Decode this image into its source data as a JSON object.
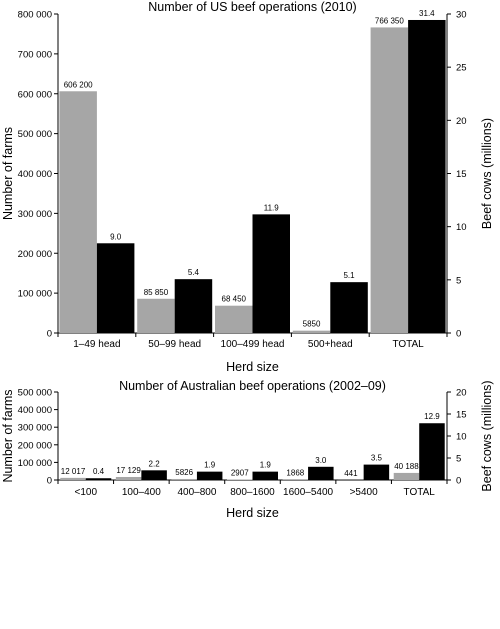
{
  "colors": {
    "farms": "#a6a6a6",
    "cows": "#000000",
    "axis": "#000000"
  },
  "chart_data": [
    {
      "type": "bar",
      "title": "Number of US beef operations (2010)",
      "xlabel": "Herd size",
      "ylabel": "Number of farms",
      "y2label": "Beef cows (millions)",
      "ylim": [
        0,
        800000
      ],
      "y2lim": [
        0,
        32
      ],
      "yticks": [
        "0",
        "100 000",
        "200 000",
        "300 000",
        "400 000",
        "500 000",
        "600 000",
        "700 000",
        "800 000"
      ],
      "y2ticks": [
        "0",
        "5",
        "10",
        "15",
        "20",
        "25",
        "30"
      ],
      "categories": [
        "1–49 head",
        "50–99 head",
        "100–499 head",
        "500+head",
        "TOTAL"
      ],
      "series": [
        {
          "axis": "left",
          "color": "#a6a6a6",
          "values": [
            606200,
            85850,
            68450,
            5850,
            766350
          ],
          "labels": [
            "606 200",
            "85 850",
            "68 450",
            "5850",
            "766 350"
          ]
        },
        {
          "axis": "right",
          "color": "#000000",
          "values": [
            9.0,
            5.4,
            11.9,
            5.1,
            31.4
          ],
          "labels": [
            "9.0",
            "5.4",
            "11.9",
            "5.1",
            "31.4"
          ]
        }
      ]
    },
    {
      "type": "bar",
      "title": "Number of Australian beef operations (2002–09)",
      "xlabel": "Herd size",
      "ylabel": "Number of farms",
      "y2label": "Beef cows (millions)",
      "ylim": [
        0,
        500000
      ],
      "y2lim": [
        0,
        20
      ],
      "yticks": [
        "0",
        "100 000",
        "200 000",
        "300 000",
        "400 000",
        "500 000"
      ],
      "y2ticks": [
        "0",
        "5",
        "10",
        "15",
        "20"
      ],
      "categories": [
        "<100",
        "100–400",
        "400–800",
        "800–1600",
        "1600–5400",
        ">5400",
        "TOTAL"
      ],
      "series": [
        {
          "axis": "left",
          "color": "#a6a6a6",
          "values": [
            12017,
            17129,
            5826,
            2907,
            1868,
            441,
            40188
          ],
          "labels": [
            "12 017",
            "17 129",
            "5826",
            "2907",
            "1868",
            "441",
            "40 188"
          ]
        },
        {
          "axis": "right",
          "color": "#000000",
          "values": [
            0.4,
            2.2,
            1.9,
            1.9,
            3.0,
            3.5,
            12.9
          ],
          "labels": [
            "0.4",
            "2.2",
            "1.9",
            "1.9",
            "3.0",
            "3.5",
            "12.9"
          ]
        }
      ]
    }
  ]
}
